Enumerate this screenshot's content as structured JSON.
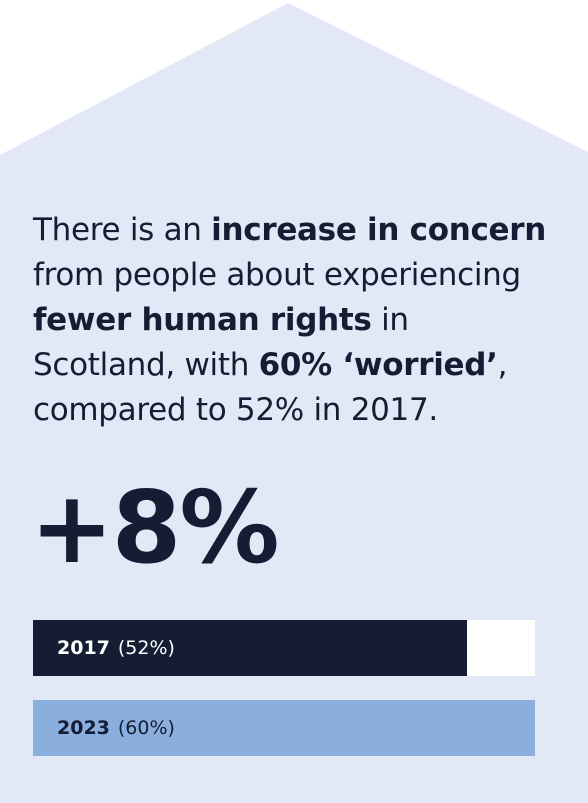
{
  "colors": {
    "page_background": "#ffffff",
    "house_fill": "#e3e8f7",
    "text": "#141d33",
    "bar_2017": "#141d33",
    "bar_2023": "#8aaedd",
    "bar_track": "#ffffff",
    "bar_2017_text": "#ffffff",
    "bar_2023_text": "#141d33"
  },
  "statement": {
    "t1": "There is an ",
    "b1": "increase in concern",
    "t2": " from people about experiencing ",
    "b2": "fewer human rights",
    "t3": " in Scotland, with ",
    "b3": "60% ‘worried’",
    "t4": ", compared to 52% in 2017."
  },
  "headline_change": "+8%",
  "bars": [
    {
      "year": "2017",
      "pct_label": "(52%)",
      "fill_fraction": 0.864
    },
    {
      "year": "2023",
      "pct_label": "(60%)",
      "fill_fraction": 1.0
    }
  ]
}
